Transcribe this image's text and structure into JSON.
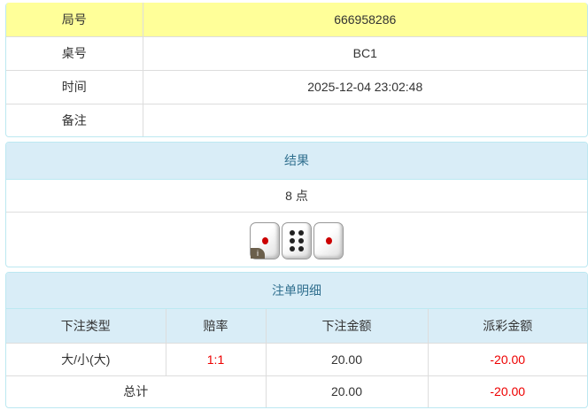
{
  "info": {
    "rows": [
      {
        "label": "局号",
        "value": "666958286"
      },
      {
        "label": "桌号",
        "value": "BC1"
      },
      {
        "label": "时间",
        "value": "2025-12-04 23:02:48"
      },
      {
        "label": "备注",
        "value": ""
      }
    ]
  },
  "result": {
    "title": "结果",
    "points": "8 点",
    "dice": [
      1,
      6,
      1
    ],
    "info_badge": "i"
  },
  "bets": {
    "title": "注单明细",
    "columns": [
      "下注类型",
      "赔率",
      "下注金额",
      "派彩金额"
    ],
    "rows": [
      {
        "type": "大/小(大)",
        "odds": "1:1",
        "amount": "20.00",
        "payout": "-20.00"
      }
    ],
    "total": {
      "label": "总计",
      "amount": "20.00",
      "payout": "-20.00"
    }
  },
  "colors": {
    "highlight": "#ffff99",
    "header_bg": "#d9edf7",
    "negative": "#ee0000"
  }
}
